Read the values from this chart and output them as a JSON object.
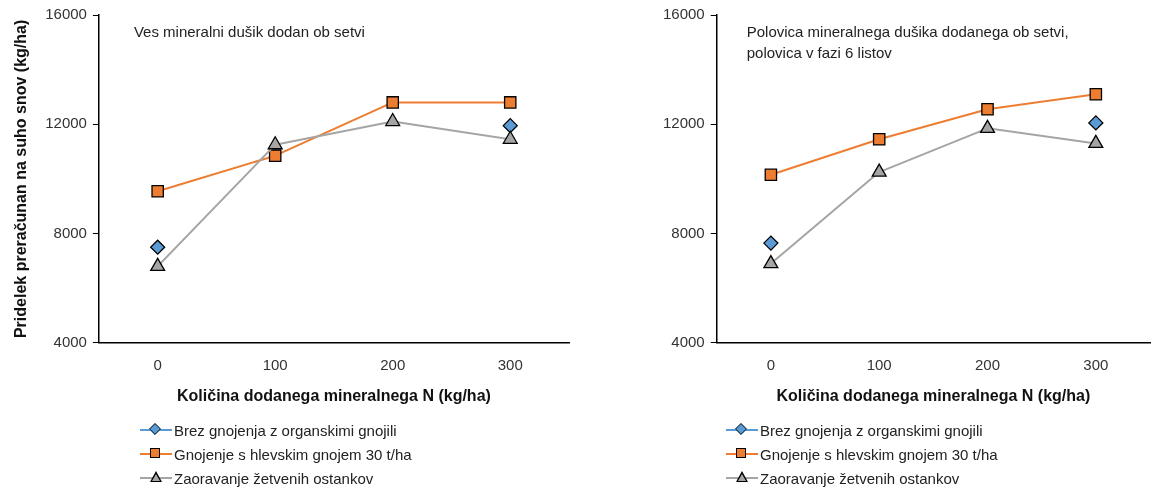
{
  "chart_data": [
    {
      "type": "line",
      "title": "Ves mineralni dušik dodan ob setvi",
      "xlabel": "Količina dodanega mineralnega N (kg/ha)",
      "ylabel": "Pridelek preračunan na suho snov (kg/ha)",
      "categories": [
        "0",
        "100",
        "200",
        "300"
      ],
      "ylim": [
        4000,
        16000
      ],
      "yticks": [
        4000,
        8000,
        12000,
        16000
      ],
      "grid": false,
      "legend": "bottom",
      "series": [
        {
          "name": "Brez gnojenja z organskimi gnojili",
          "type": "scatter",
          "color": "#5b9bd5",
          "marker": "diamond",
          "values": [
            7500,
            null,
            null,
            11950
          ]
        },
        {
          "name": "Gnojenje s hlevskim gnojem 30 t/ha",
          "color": "#ed7d31",
          "marker": "square",
          "values": [
            9550,
            10850,
            12800,
            12800
          ]
        },
        {
          "name": "Zaoravanje žetvenih ostankov",
          "color": "#a5a5a5",
          "marker": "triangle",
          "values": [
            6800,
            11250,
            12100,
            11450
          ]
        }
      ]
    },
    {
      "type": "line",
      "title": "Polovica mineralnega dušika dodanega ob setvi,\npolovica v fazi 6 listov",
      "xlabel": "Količina dodanega mineralnega N (kg/ha)",
      "categories": [
        "0",
        "100",
        "200",
        "300"
      ],
      "ylim": [
        4000,
        16000
      ],
      "yticks": [
        4000,
        8000,
        12000,
        16000
      ],
      "grid": false,
      "legend": "bottom",
      "series": [
        {
          "name": "Brez gnojenja z organskimi gnojili",
          "type": "scatter",
          "color": "#5b9bd5",
          "marker": "diamond",
          "values": [
            7650,
            null,
            null,
            12050
          ]
        },
        {
          "name": "Gnojenje s hlevskim gnojem 30 t/ha",
          "color": "#ed7d31",
          "marker": "square",
          "values": [
            10150,
            11450,
            12550,
            13100
          ]
        },
        {
          "name": "Zaoravanje žetvenih ostankov",
          "color": "#a5a5a5",
          "marker": "triangle",
          "values": [
            6900,
            10250,
            11850,
            11300
          ]
        }
      ]
    }
  ]
}
